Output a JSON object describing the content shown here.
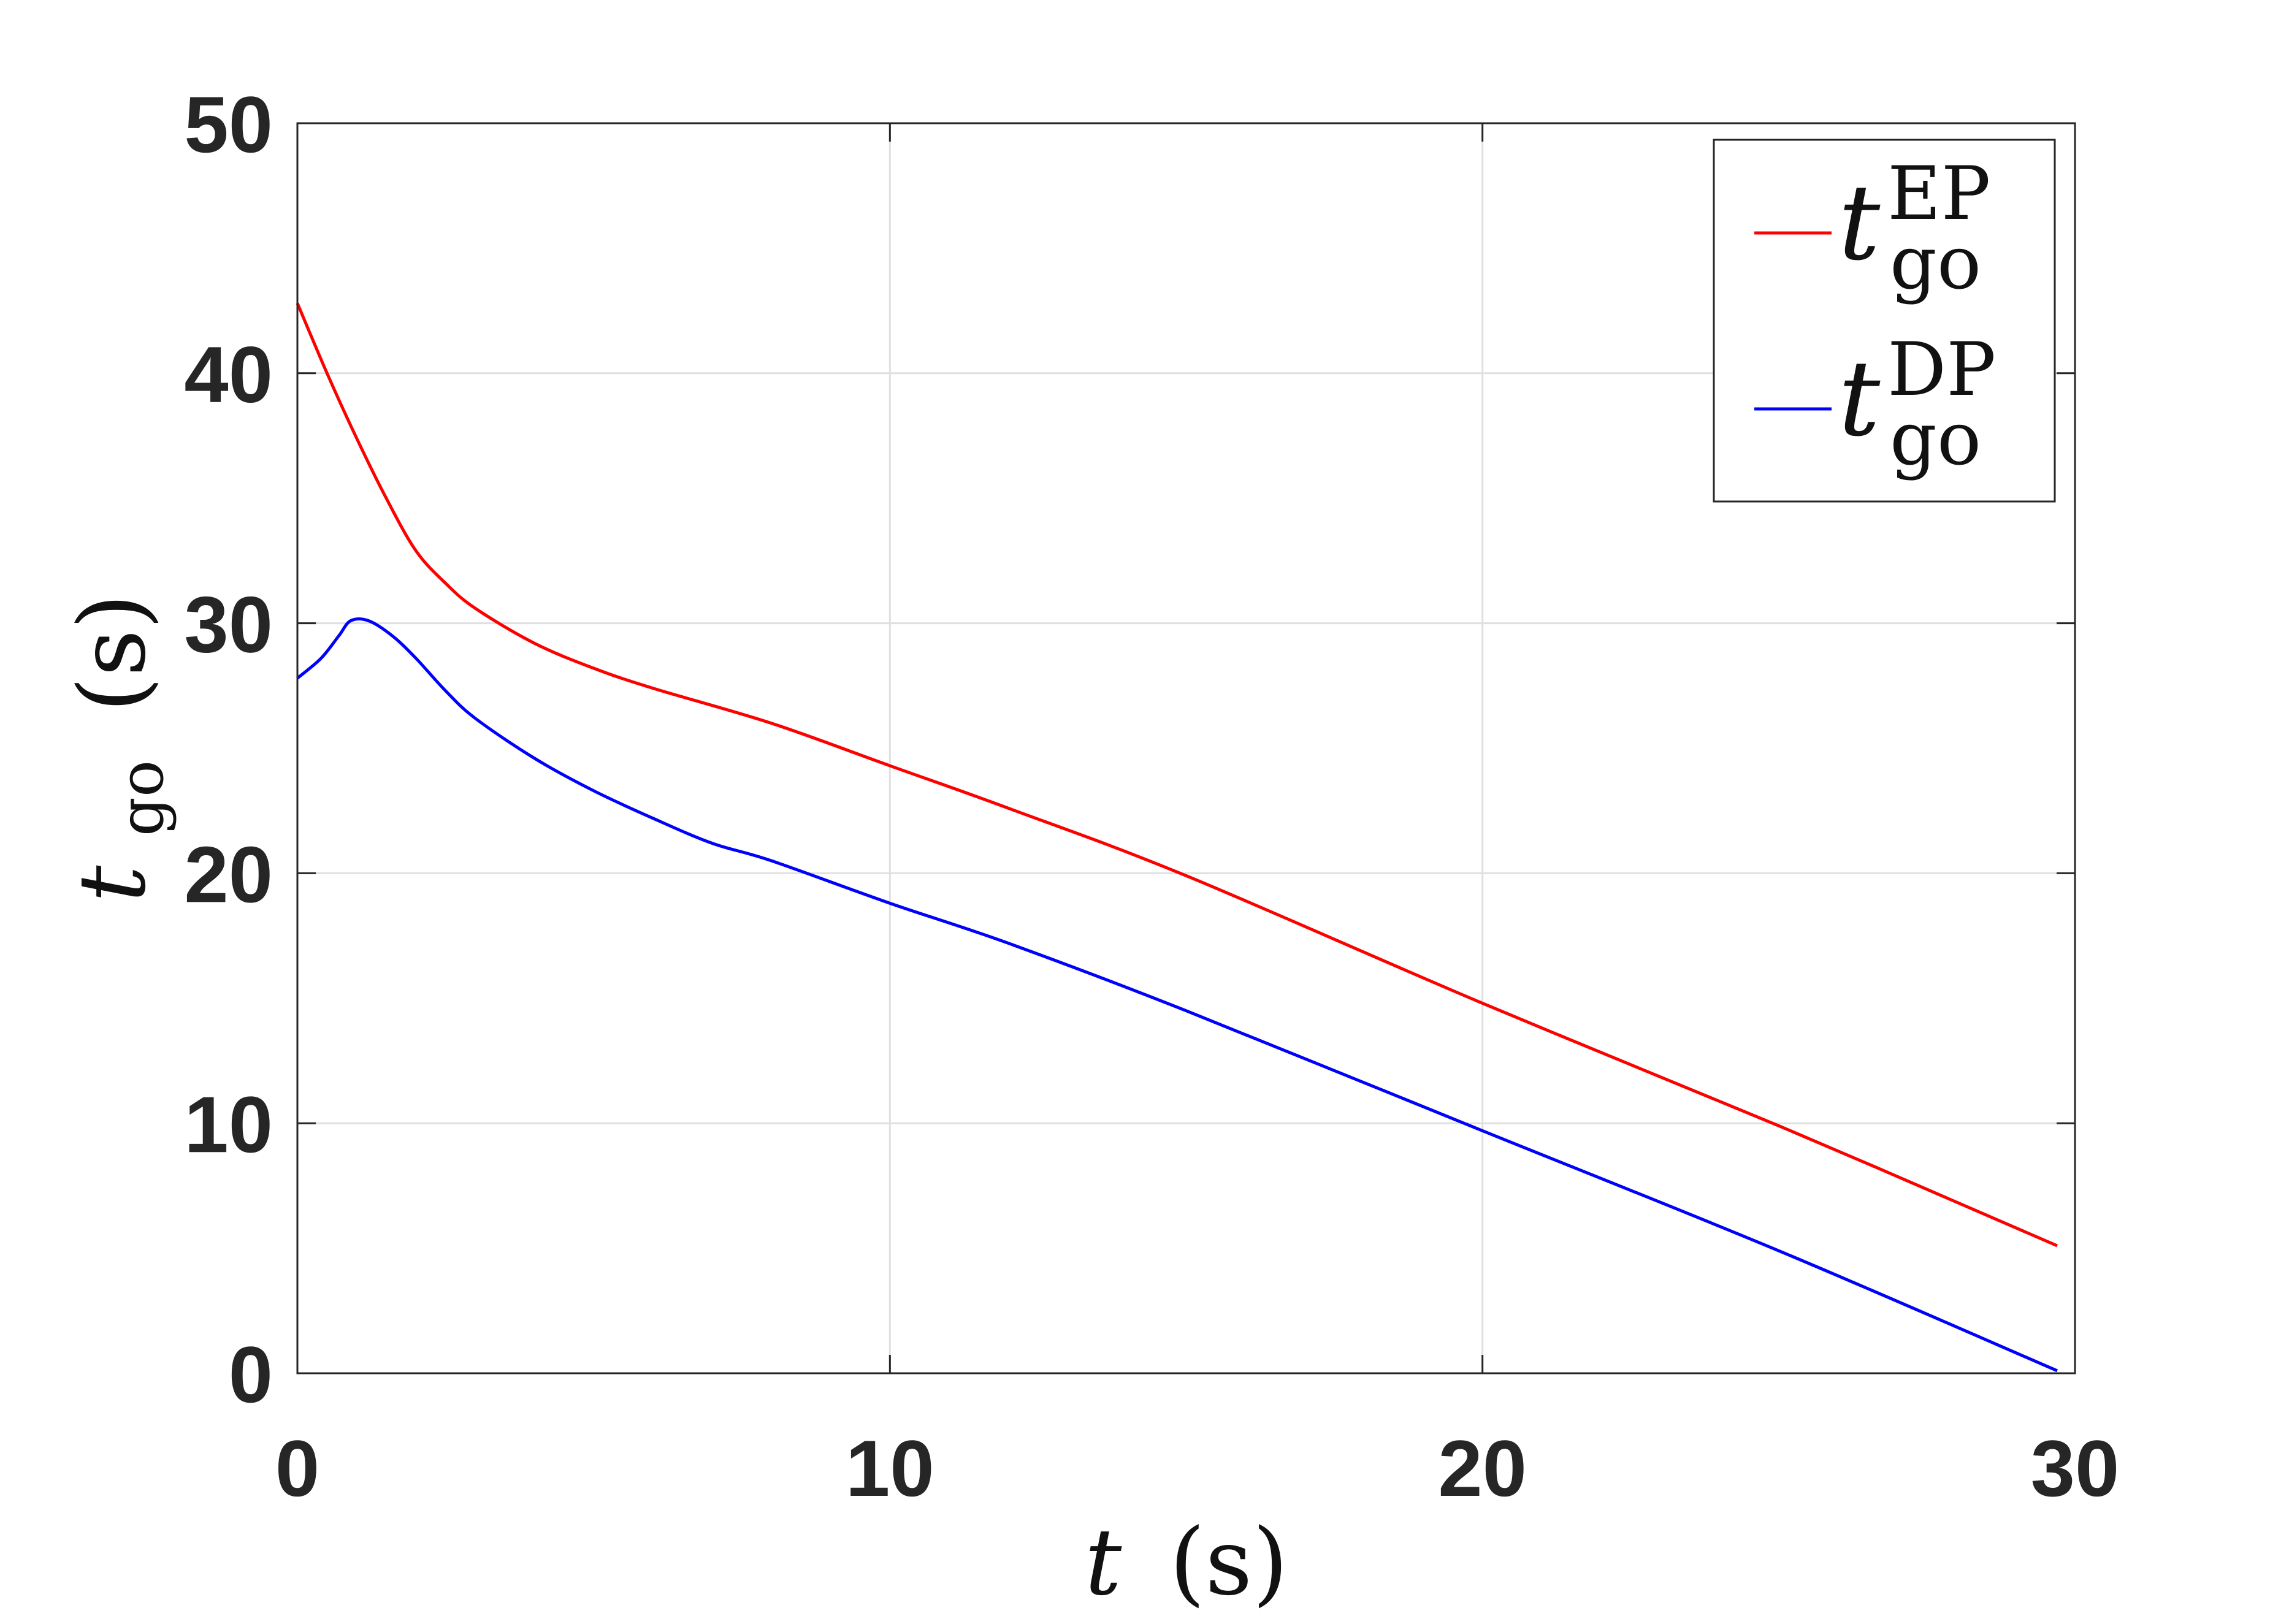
{
  "chart_data": {
    "type": "line",
    "title": "",
    "xlabel": {
      "var": "t",
      "unit": "(s)"
    },
    "ylabel": {
      "var": "t",
      "sub": "go",
      "unit": "(s)"
    },
    "xlim": [
      0,
      30
    ],
    "ylim": [
      0,
      50
    ],
    "xticks": [
      "0",
      "10",
      "20",
      "30"
    ],
    "yticks": [
      "0",
      "10",
      "20",
      "30",
      "40",
      "50"
    ],
    "grid": true,
    "legend_position": "top-right",
    "series": [
      {
        "name": "t_go^EP",
        "legend": {
          "var": "t",
          "sup": "EP",
          "sub": "go"
        },
        "color": "#ff0000",
        "x": [
          0,
          0.5,
          1,
          1.5,
          2,
          2.5,
          3,
          4,
          5,
          6,
          8,
          10,
          12,
          15,
          20,
          25,
          29.7
        ],
        "y": [
          42.8,
          40.0,
          37.4,
          35.0,
          32.9,
          31.6,
          30.6,
          29.2,
          28.2,
          27.4,
          26.0,
          24.3,
          22.6,
          19.9,
          14.8,
          9.9,
          5.1
        ]
      },
      {
        "name": "t_go^DP",
        "legend": {
          "var": "t",
          "sup": "DP",
          "sub": "go"
        },
        "color": "#0000ff",
        "x": [
          0,
          0.4,
          0.7,
          0.9,
          1.2,
          1.6,
          2,
          2.5,
          3,
          4,
          5,
          6,
          7,
          8,
          10,
          12,
          15,
          20,
          25,
          29.7
        ],
        "y": [
          27.8,
          28.6,
          29.5,
          30.1,
          30.1,
          29.5,
          28.6,
          27.3,
          26.2,
          24.6,
          23.3,
          22.2,
          21.2,
          20.5,
          18.8,
          17.2,
          14.5,
          9.7,
          4.9,
          0.1
        ]
      }
    ]
  }
}
